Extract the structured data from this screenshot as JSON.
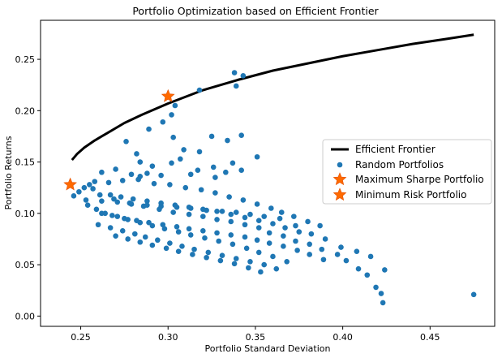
{
  "chart_data": {
    "type": "scatter",
    "title": "Portfolio Optimization based on Efficient Frontier",
    "xlabel": "Portfolio Standard Deviation",
    "ylabel": "Portfolio Returns",
    "xlim": [
      0.227,
      0.487
    ],
    "ylim": [
      -0.01,
      0.288
    ],
    "x_ticks": [
      0.25,
      0.3,
      0.35,
      0.4,
      0.45
    ],
    "x_tick_labels": [
      "0.25",
      "0.30",
      "0.35",
      "0.40",
      "0.45"
    ],
    "y_ticks": [
      0.0,
      0.05,
      0.1,
      0.15,
      0.2,
      0.25
    ],
    "y_tick_labels": [
      "0.00",
      "0.05",
      "0.10",
      "0.15",
      "0.20",
      "0.25"
    ],
    "grid": false,
    "legend_position": "center-right",
    "colors": {
      "frontier": "#000000",
      "random": "#1f77b4",
      "star": "#ff6a00"
    },
    "series": [
      {
        "name": "Efficient Frontier",
        "kind": "line",
        "x": [
          0.245,
          0.248,
          0.252,
          0.258,
          0.265,
          0.275,
          0.285,
          0.3,
          0.32,
          0.34,
          0.36,
          0.38,
          0.4,
          0.42,
          0.44,
          0.46,
          0.475
        ],
        "y": [
          0.152,
          0.158,
          0.164,
          0.171,
          0.178,
          0.188,
          0.196,
          0.207,
          0.22,
          0.23,
          0.239,
          0.246,
          0.253,
          0.259,
          0.265,
          0.27,
          0.274
        ]
      },
      {
        "name": "Random Portfolios",
        "kind": "scatter",
        "x": [
          0.338,
          0.343,
          0.339,
          0.318,
          0.304,
          0.325,
          0.309,
          0.302,
          0.297,
          0.303,
          0.289,
          0.276,
          0.282,
          0.284,
          0.291,
          0.302,
          0.307,
          0.318,
          0.334,
          0.342,
          0.351,
          0.337,
          0.326,
          0.317,
          0.313,
          0.333,
          0.327,
          0.342,
          0.288,
          0.296,
          0.262,
          0.27,
          0.279,
          0.284,
          0.255,
          0.258,
          0.252,
          0.249,
          0.246,
          0.253,
          0.262,
          0.271,
          0.279,
          0.288,
          0.296,
          0.305,
          0.313,
          0.322,
          0.331,
          0.339,
          0.347,
          0.355,
          0.364,
          0.373,
          0.382,
          0.39,
          0.399,
          0.408,
          0.416,
          0.424,
          0.475,
          0.423,
          0.422,
          0.419,
          0.414,
          0.409,
          0.402,
          0.397,
          0.388,
          0.381,
          0.373,
          0.366,
          0.358,
          0.352,
          0.344,
          0.336,
          0.328,
          0.32,
          0.312,
          0.303,
          0.295,
          0.286,
          0.278,
          0.269,
          0.261,
          0.257,
          0.266,
          0.274,
          0.283,
          0.292,
          0.301,
          0.31,
          0.319,
          0.327,
          0.335,
          0.343,
          0.351,
          0.359,
          0.365,
          0.372,
          0.38,
          0.387,
          0.262,
          0.268,
          0.275,
          0.282,
          0.289,
          0.297,
          0.305,
          0.312,
          0.32,
          0.328,
          0.336,
          0.344,
          0.351,
          0.358,
          0.366,
          0.374,
          0.381,
          0.389,
          0.254,
          0.259,
          0.264,
          0.271,
          0.277,
          0.284,
          0.291,
          0.298,
          0.306,
          0.313,
          0.321,
          0.329,
          0.337,
          0.345,
          0.352,
          0.36,
          0.368,
          0.26,
          0.267,
          0.274,
          0.281,
          0.287,
          0.294,
          0.301,
          0.308,
          0.315,
          0.323,
          0.331,
          0.339,
          0.347,
          0.355,
          0.362,
          0.27,
          0.277,
          0.284,
          0.291,
          0.299,
          0.306,
          0.314,
          0.322,
          0.33,
          0.338,
          0.346,
          0.353,
          0.267,
          0.273,
          0.28,
          0.288,
          0.296,
          0.304,
          0.312,
          0.32,
          0.328,
          0.336,
          0.344,
          0.352,
          0.36,
          0.367,
          0.375
        ],
        "y": [
          0.237,
          0.234,
          0.224,
          0.22,
          0.205,
          0.175,
          0.162,
          0.196,
          0.189,
          0.174,
          0.182,
          0.17,
          0.158,
          0.15,
          0.146,
          0.149,
          0.153,
          0.16,
          0.171,
          0.176,
          0.155,
          0.149,
          0.145,
          0.142,
          0.138,
          0.14,
          0.135,
          0.142,
          0.139,
          0.137,
          0.14,
          0.143,
          0.138,
          0.136,
          0.128,
          0.131,
          0.125,
          0.121,
          0.117,
          0.113,
          0.112,
          0.111,
          0.109,
          0.108,
          0.107,
          0.106,
          0.105,
          0.103,
          0.102,
          0.101,
          0.099,
          0.097,
          0.095,
          0.088,
          0.08,
          0.075,
          0.067,
          0.063,
          0.058,
          0.045,
          0.021,
          0.013,
          0.022,
          0.028,
          0.04,
          0.046,
          0.054,
          0.06,
          0.065,
          0.07,
          0.073,
          0.078,
          0.081,
          0.086,
          0.089,
          0.092,
          0.094,
          0.097,
          0.099,
          0.101,
          0.104,
          0.107,
          0.11,
          0.114,
          0.118,
          0.124,
          0.13,
          0.132,
          0.133,
          0.129,
          0.128,
          0.125,
          0.123,
          0.12,
          0.116,
          0.113,
          0.109,
          0.105,
          0.101,
          0.097,
          0.092,
          0.088,
          0.1,
          0.098,
          0.095,
          0.093,
          0.091,
          0.089,
          0.087,
          0.085,
          0.083,
          0.081,
          0.079,
          0.077,
          0.074,
          0.071,
          0.068,
          0.064,
          0.06,
          0.055,
          0.108,
          0.104,
          0.1,
          0.097,
          0.094,
          0.091,
          0.088,
          0.085,
          0.082,
          0.079,
          0.076,
          0.073,
          0.07,
          0.066,
          0.062,
          0.058,
          0.053,
          0.089,
          0.086,
          0.083,
          0.08,
          0.077,
          0.074,
          0.071,
          0.068,
          0.065,
          0.062,
          0.059,
          0.056,
          0.053,
          0.05,
          0.046,
          0.078,
          0.075,
          0.072,
          0.069,
          0.066,
          0.063,
          0.06,
          0.057,
          0.054,
          0.051,
          0.047,
          0.043,
          0.118,
          0.116,
          0.114,
          0.112,
          0.11,
          0.108,
          0.106,
          0.104,
          0.102,
          0.099,
          0.096,
          0.093,
          0.09,
          0.086,
          0.082
        ]
      },
      {
        "name": "Maximum Sharpe Portfolio",
        "kind": "marker",
        "x": [
          0.3
        ],
        "y": [
          0.214
        ]
      },
      {
        "name": "Minimum Risk Portfolio",
        "kind": "marker",
        "x": [
          0.244
        ],
        "y": [
          0.128
        ]
      }
    ]
  }
}
